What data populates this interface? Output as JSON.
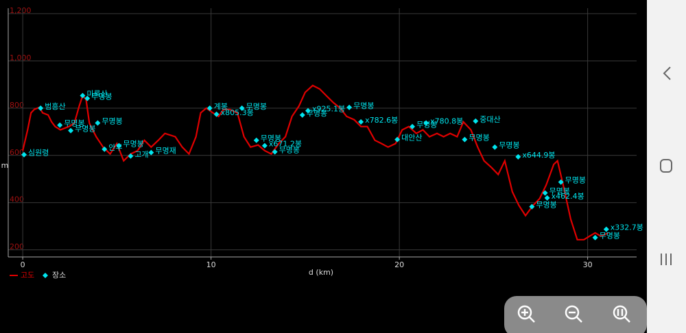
{
  "chart_data": {
    "type": "line",
    "xlabel": "d (km)",
    "ylabel": "m",
    "xlim": [
      -0.77,
      32.6
    ],
    "ylim": [
      170,
      1223
    ],
    "xticks": [
      0,
      10,
      20,
      30
    ],
    "yticks": [
      {
        "value": 200,
        "label": "200"
      },
      {
        "value": 400,
        "label": "400"
      },
      {
        "value": 600,
        "label": "600"
      },
      {
        "value": 800,
        "label": "800"
      },
      {
        "value": 1000,
        "label": "1,000"
      },
      {
        "value": 1200,
        "label": "1,200"
      }
    ],
    "grid": true,
    "series": [
      {
        "name": "고도",
        "color": "#e00000",
        "x": [
          0,
          0.26,
          0.44,
          0.62,
          0.88,
          1.06,
          1.35,
          1.53,
          1.72,
          2.0,
          2.45,
          2.74,
          3.0,
          3.18,
          3.36,
          3.54,
          3.9,
          4.27,
          4.64,
          5.0,
          5.36,
          5.73,
          6.1,
          6.46,
          6.82,
          7.2,
          7.55,
          8.1,
          8.47,
          8.83,
          9.2,
          9.45,
          9.75,
          10.1,
          10.4,
          10.66,
          11.0,
          11.4,
          11.75,
          12.1,
          12.5,
          12.85,
          13.2,
          13.6,
          13.95,
          14.3,
          14.67,
          15.0,
          15.4,
          15.77,
          16.13,
          16.5,
          16.86,
          17.2,
          17.6,
          17.96,
          18.3,
          18.7,
          19.05,
          19.4,
          19.8,
          20.15,
          20.5,
          20.9,
          21.25,
          21.6,
          22.0,
          22.35,
          22.7,
          23.07,
          23.4,
          23.8,
          24.16,
          24.5,
          24.9,
          25.25,
          25.6,
          26.0,
          26.35,
          26.7,
          27.1,
          27.45,
          27.8,
          28.2,
          28.4,
          28.7,
          29.1,
          29.45,
          29.8,
          30.1,
          30.4,
          30.7,
          31.1
        ],
        "values": [
          620,
          708,
          780,
          795,
          803,
          780,
          771,
          742,
          722,
          708,
          722,
          736,
          809,
          852,
          838,
          736,
          679,
          635,
          606,
          650,
          577,
          606,
          620,
          664,
          635,
          664,
          693,
          679,
          635,
          606,
          679,
          780,
          800,
          780,
          765,
          794,
          794,
          780,
          679,
          635,
          644,
          620,
          606,
          650,
          679,
          765,
          809,
          867,
          896,
          881,
          852,
          823,
          800,
          765,
          751,
          722,
          722,
          664,
          650,
          635,
          650,
          708,
          722,
          693,
          708,
          679,
          693,
          679,
          693,
          679,
          742,
          708,
          635,
          577,
          548,
          519,
          577,
          446,
          388,
          345,
          388,
          417,
          475,
          562,
          577,
          475,
          330,
          243,
          243,
          258,
          272,
          258,
          272
        ]
      },
      {
        "name": "장소",
        "type": "scatter",
        "color": "#00e5ee",
        "x": [
          0.07,
          0.95,
          1.97,
          2.55,
          3.18,
          3.43,
          3.98,
          4.34,
          5.11,
          5.73,
          6.82,
          9.93,
          10.29,
          11.64,
          12.41,
          12.85,
          13.39,
          14.85,
          15.15,
          17.34,
          17.96,
          19.89,
          20.69,
          21.42,
          23.47,
          24.05,
          25.07,
          26.31,
          27.04,
          27.74,
          27.85,
          28.58,
          30.4,
          30.99
        ],
        "values": [
          603,
          800,
          728,
          705,
          853,
          841,
          737,
          626,
          641,
          597,
          612,
          800,
          774,
          800,
          664,
          641,
          615,
          771,
          789,
          803,
          742,
          667,
          722,
          737,
          667,
          745,
          635,
          594,
          383,
          441,
          420,
          487,
          252,
          287
        ],
        "labels": [
          "심원령",
          "범흥산",
          "무명봉",
          "무명봉",
          "미륵산",
          "무명봉",
          "무명봉",
          "안부",
          "무명봉",
          "고개",
          "무명재",
          "계봉",
          "x805.3봉",
          "무명봉",
          "무명봉",
          "x671.2봉",
          "무명봉",
          "무명봉",
          "x925.1봉",
          "무명봉",
          "x782.6봉",
          "대안산",
          "무명봉",
          "x780.8봉",
          "무명봉",
          "중대산",
          "무명봉",
          "x644.9봉",
          "무명봉",
          "무명봉",
          "x462.4봉",
          "무명봉",
          "무명봉",
          "x332.7봉"
        ]
      }
    ]
  }
}
